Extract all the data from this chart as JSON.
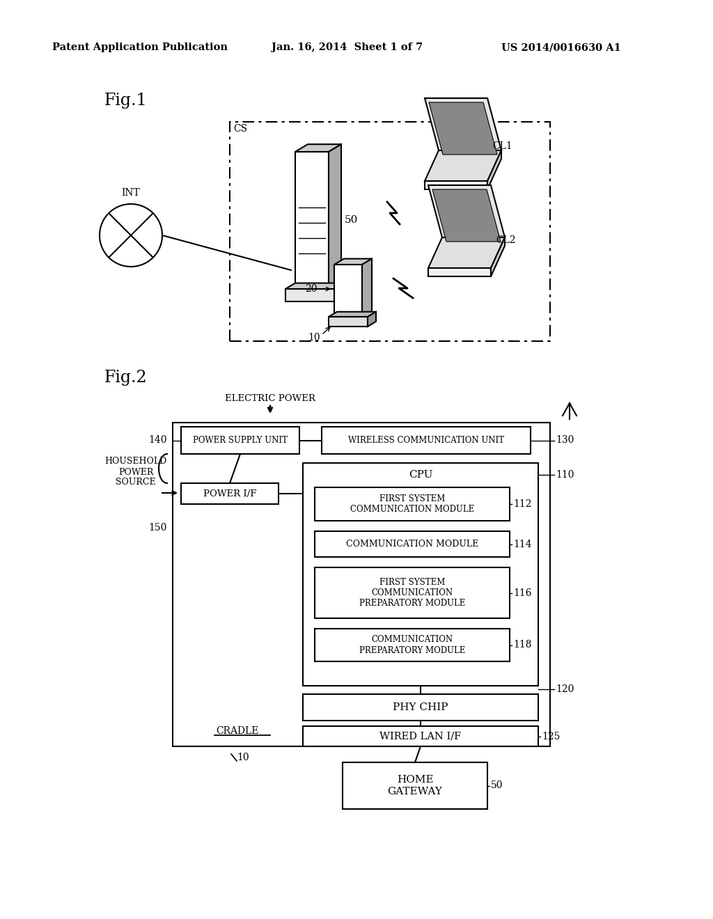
{
  "bg_color": "#ffffff",
  "header_left": "Patent Application Publication",
  "header_center": "Jan. 16, 2014  Sheet 1 of 7",
  "header_right": "US 2014/0016630 A1",
  "fig1_label": "Fig.1",
  "fig2_label": "Fig.2"
}
